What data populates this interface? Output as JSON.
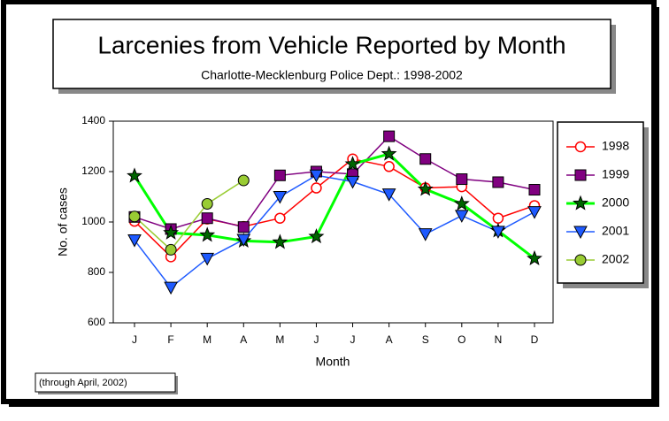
{
  "chart_data": {
    "type": "line",
    "title": "Larcenies from Vehicle Reported by Month",
    "subtitle": "Charlotte-Mecklenburg Police Dept.: 1998-2002",
    "x_label": "Month",
    "y_label": "No. of cases",
    "annotation": "(through  April, 2002)",
    "categories": [
      "J",
      "F",
      "M",
      "A",
      "M",
      "J",
      "J",
      "A",
      "S",
      "O",
      "N",
      "D"
    ],
    "ylim": [
      600,
      1400
    ],
    "yticks": [
      600,
      800,
      1000,
      1200,
      1400
    ],
    "legend": "right",
    "series": [
      {
        "name": "1998",
        "color": "#ff0000",
        "line_color": "#ff0000",
        "marker": "circle-open",
        "values": [
          1003,
          862,
          1012,
          982,
          1015,
          1135,
          1250,
          1220,
          1135,
          1140,
          1015,
          1065
        ]
      },
      {
        "name": "1999",
        "color": "#800080",
        "line_color": "#800080",
        "marker": "square",
        "values": [
          1020,
          972,
          1015,
          980,
          1185,
          1200,
          1190,
          1340,
          1250,
          1170,
          1158,
          1128
        ]
      },
      {
        "name": "2000",
        "color": "#006400",
        "line_color": "#00ff00",
        "marker": "star",
        "values": [
          1183,
          957,
          948,
          925,
          920,
          942,
          1230,
          1270,
          1130,
          1072,
          965,
          855
        ]
      },
      {
        "name": "2001",
        "color": "#1e5aff",
        "line_color": "#1e5aff",
        "marker": "triangle-down",
        "values": [
          928,
          740,
          855,
          930,
          1100,
          1185,
          1160,
          1110,
          952,
          1025,
          962,
          1040
        ]
      },
      {
        "name": "2002",
        "color": "#99cc33",
        "line_color": "#99cc33",
        "marker": "circle",
        "values": [
          1022,
          890,
          1072,
          1165,
          null,
          null,
          null,
          null,
          null,
          null,
          null,
          null
        ]
      }
    ]
  }
}
